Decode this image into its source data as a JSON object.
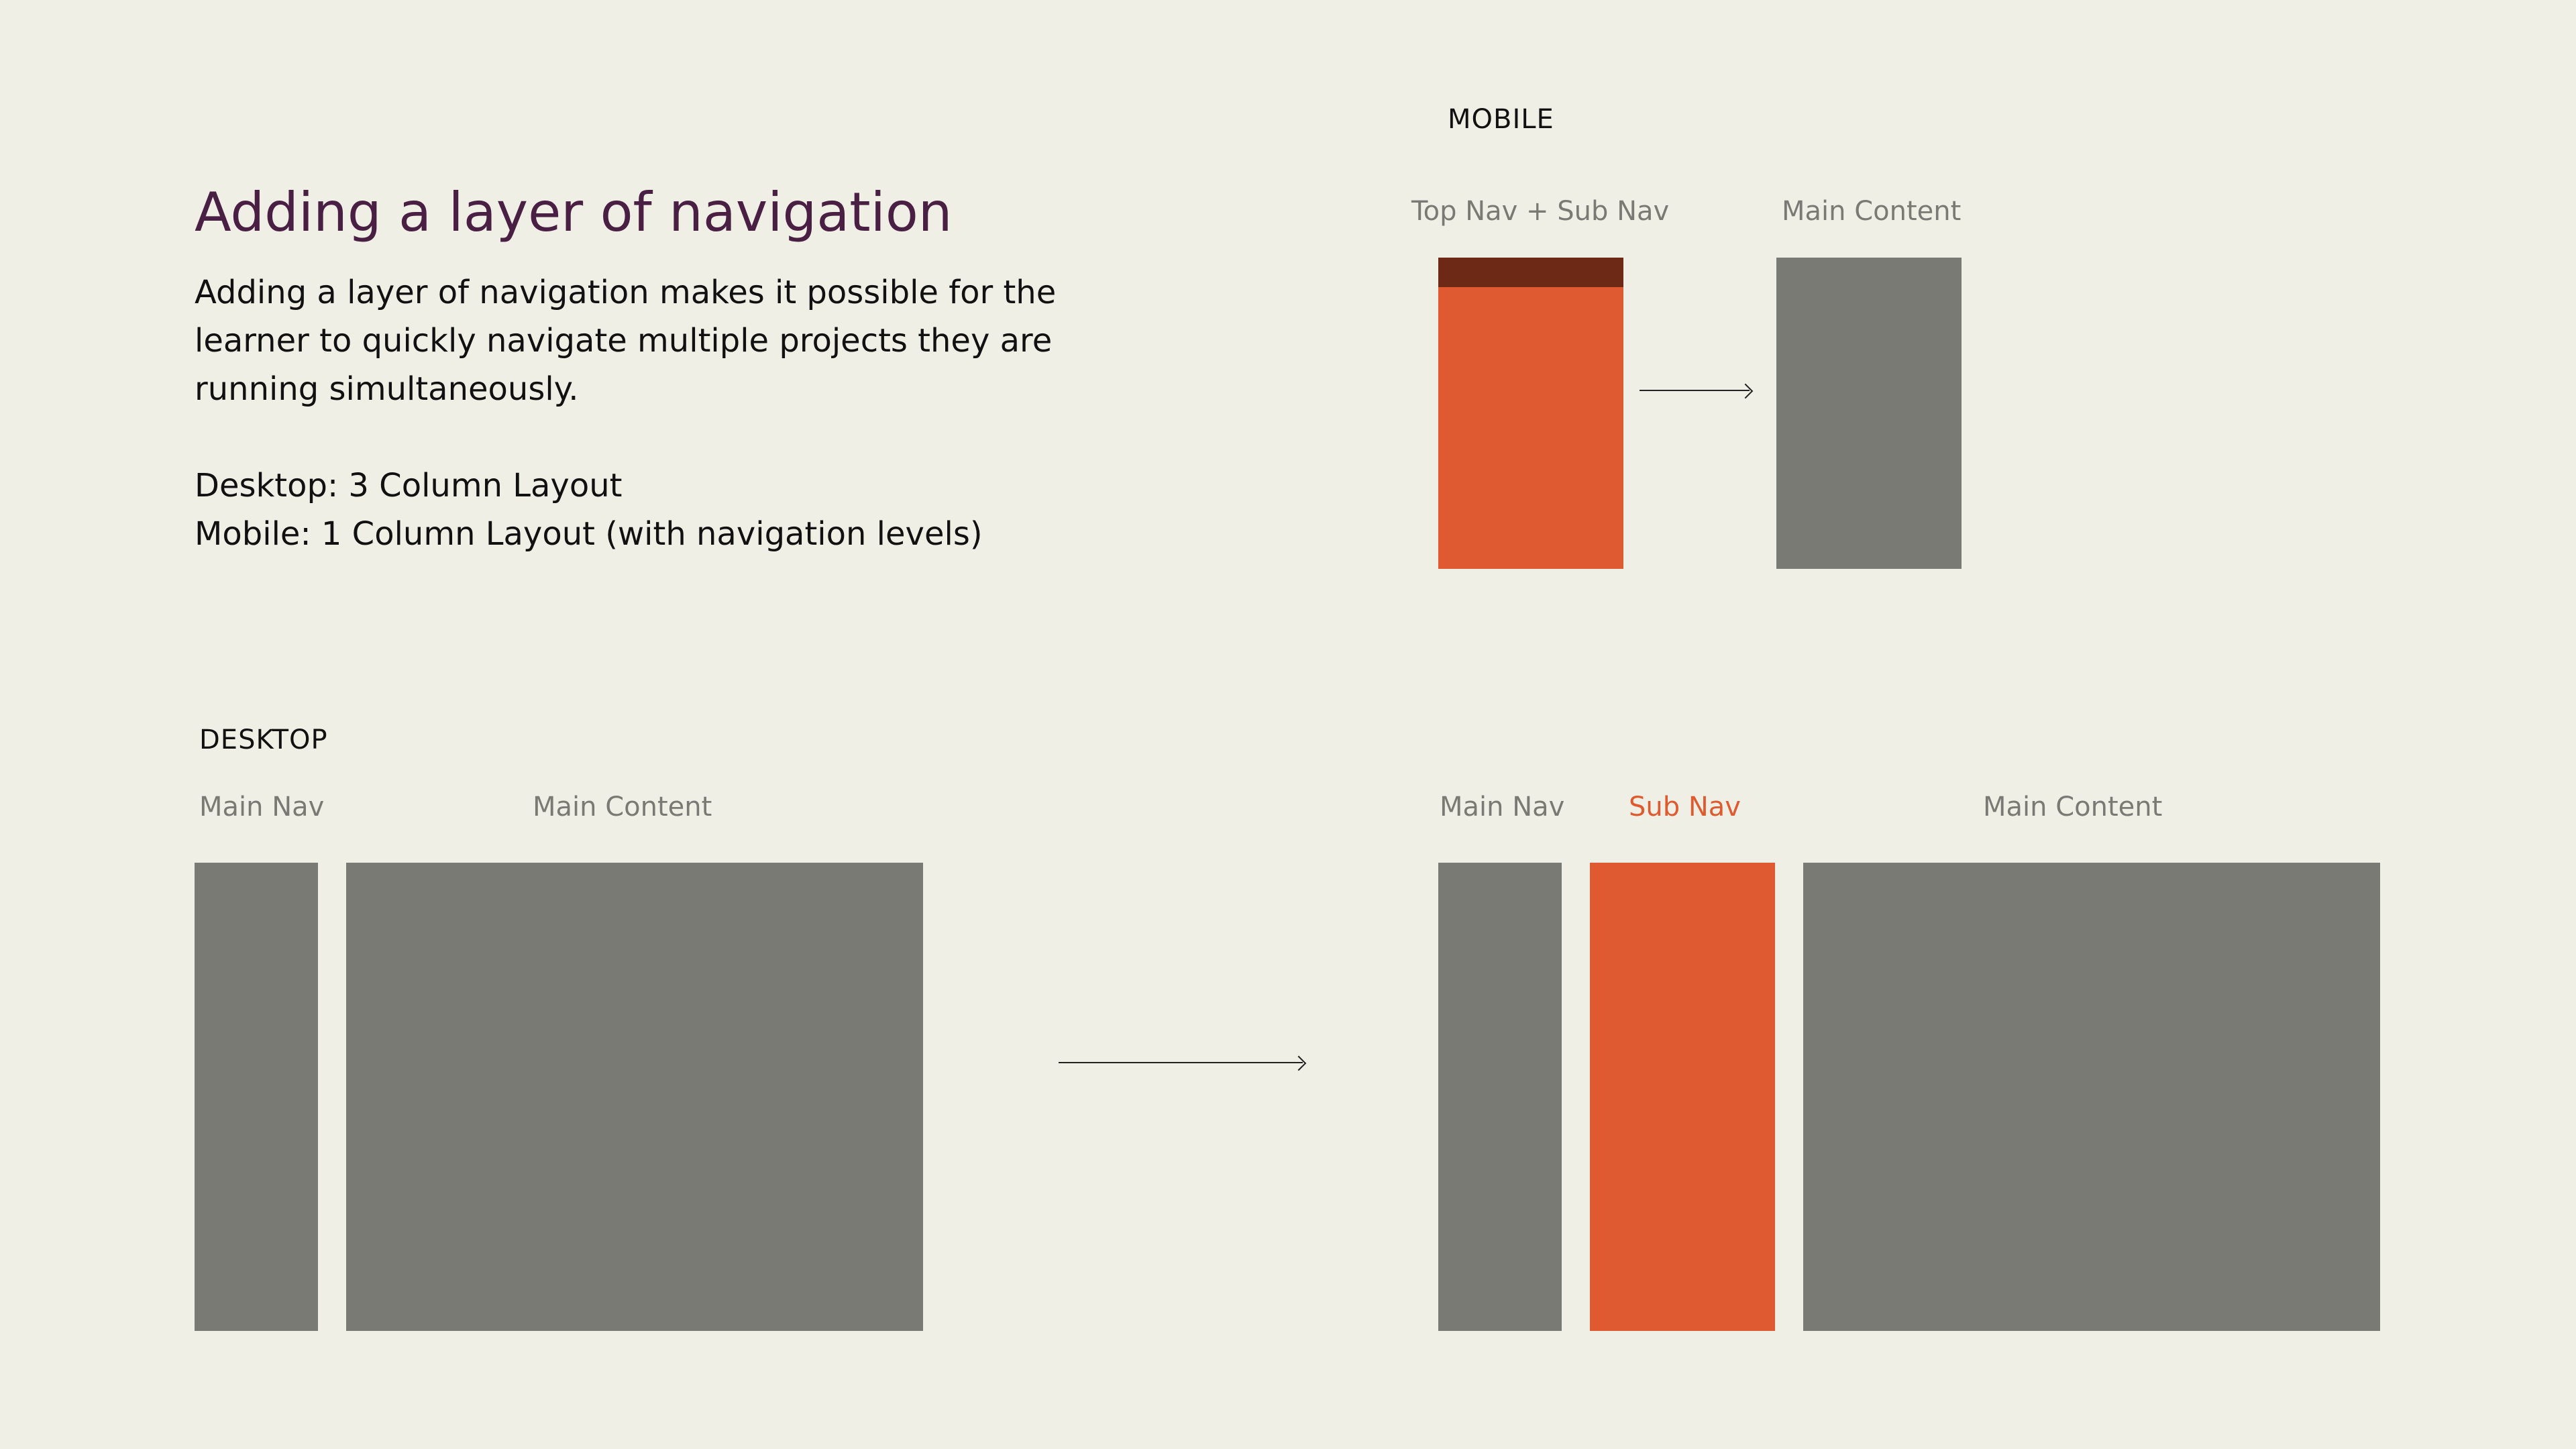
{
  "intro": {
    "title": "Adding a layer of navigation",
    "description": "Adding a layer of navigation makes it possible for the learner to quickly navigate multiple projects they are running simultaneously.",
    "desktop_layout": "Desktop: 3 Column Layout",
    "mobile_layout": "Mobile: 1 Column Layout (with navigation levels)"
  },
  "mobile": {
    "heading": "MOBILE",
    "before_label": "Top Nav + Sub Nav",
    "after_label": "Main Content"
  },
  "desktop": {
    "heading": "DESKTOP",
    "before": {
      "main_nav_label": "Main Nav",
      "main_content_label": "Main Content"
    },
    "after": {
      "main_nav_label": "Main Nav",
      "sub_nav_label": "Sub Nav",
      "main_content_label": "Main Content"
    }
  },
  "colors": {
    "background": "#f0efe6",
    "title": "#4a1f44",
    "gray_block": "#797a73",
    "orange_accent": "#df5a31",
    "dark_header": "#6e2916"
  }
}
